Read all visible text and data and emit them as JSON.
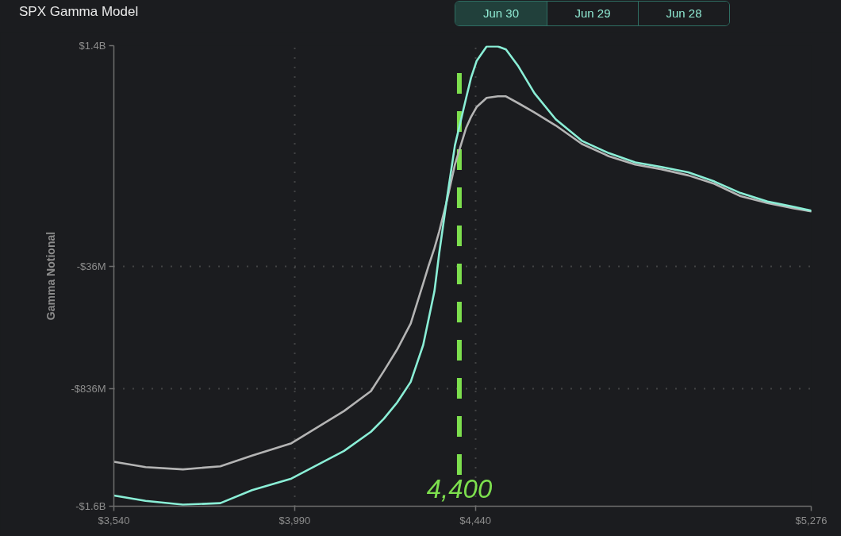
{
  "chart_data": {
    "type": "line",
    "title": "SPX Gamma Model",
    "ylabel": "Gamma Notional",
    "annotations": [
      "Jun 30",
      "Jun 29",
      "Jun 28"
    ],
    "x": [
      3540,
      3619,
      3712,
      3805,
      3884,
      3982,
      4113,
      4180,
      4212,
      4245,
      4279,
      4310,
      4324,
      4338,
      4350,
      4370,
      4389,
      4417,
      4429,
      4443,
      4468,
      4496,
      4516,
      4547,
      4587,
      4640,
      4705,
      4772,
      4838,
      4903,
      4970,
      5035,
      5100,
      5167,
      5233,
      5276
    ],
    "series": [
      {
        "color": "#b4b4b4",
        "values": [
          -1310000000,
          -1345000000,
          -1360000000,
          -1340000000,
          -1270000000,
          -1190000000,
          -980000000,
          -850000000,
          -720000000,
          -580000000,
          -410000000,
          -150000000,
          -30000000,
          80000000,
          190000000,
          400000000,
          625000000,
          865000000,
          935000000,
          1000000000,
          1060000000,
          1070000000,
          1070000000,
          1025000000,
          965000000,
          880000000,
          760000000,
          680000000,
          625000000,
          595000000,
          555000000,
          500000000,
          420000000,
          375000000,
          340000000,
          320000000
        ]
      },
      {
        "color": "#8aeed6",
        "values": [
          -1530000000,
          -1565000000,
          -1590000000,
          -1580000000,
          -1495000000,
          -1420000000,
          -1240000000,
          -1115000000,
          -1030000000,
          -925000000,
          -790000000,
          -550000000,
          -375000000,
          -200000000,
          50000000,
          420000000,
          750000000,
          1060000000,
          1190000000,
          1300000000,
          1395000000,
          1395000000,
          1375000000,
          1265000000,
          1090000000,
          920000000,
          780000000,
          700000000,
          640000000,
          610000000,
          575000000,
          515000000,
          440000000,
          385000000,
          350000000,
          325000000
        ]
      }
    ],
    "xlim": [
      3540,
      5276
    ],
    "xticks": [
      {
        "value": 3540,
        "label": "$3,540"
      },
      {
        "value": 3990,
        "label": "$3,990"
      },
      {
        "value": 4440,
        "label": "$4,440"
      },
      {
        "value": 5276,
        "label": "$5,276"
      }
    ],
    "ylim": [
      -1600000000,
      1400000000
    ],
    "yticks": [
      {
        "value": 1400000000,
        "label": "$1.4B"
      },
      {
        "value": -36000000,
        "label": "-$36M"
      },
      {
        "value": -836000000,
        "label": "-$836M"
      },
      {
        "value": -1600000000,
        "label": "-$1.6B"
      }
    ],
    "grid": true,
    "ref_lines": [
      {
        "axis": "x",
        "value": 4400,
        "label": "4,400",
        "color": "#7ddf4e",
        "line_style": "dashed"
      }
    ]
  }
}
